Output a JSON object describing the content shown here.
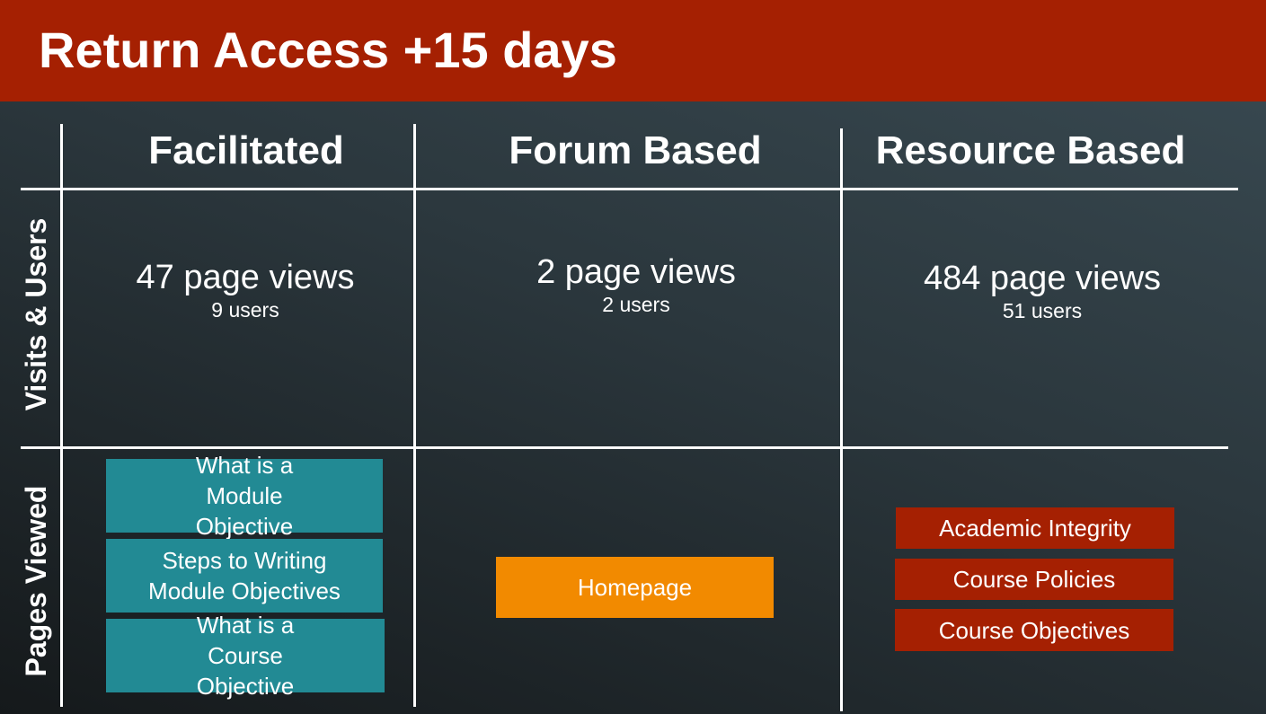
{
  "title": "Return Access +15 days",
  "columns": [
    "Facilitated",
    "Forum Based",
    "Resource Based"
  ],
  "rows": [
    "Visits & Users",
    "Pages Viewed"
  ],
  "stats": [
    {
      "views": "47 page views",
      "users": "9 users"
    },
    {
      "views": "2 page views",
      "users": "2 users"
    },
    {
      "views": "484 page views",
      "users": "51 users"
    }
  ],
  "pages": {
    "facilitated": [
      "What is a Module Objective",
      "Steps to Writing Module Objectives",
      "What is a Course Objective"
    ],
    "forum": [
      "Homepage"
    ],
    "resource": [
      "Academic Integrity",
      "Course Policies",
      "Course Objectives"
    ]
  },
  "colors": {
    "header": "#A52002",
    "facilitated": "#228A94",
    "forum": "#F28A00",
    "resource": "#A52002"
  }
}
